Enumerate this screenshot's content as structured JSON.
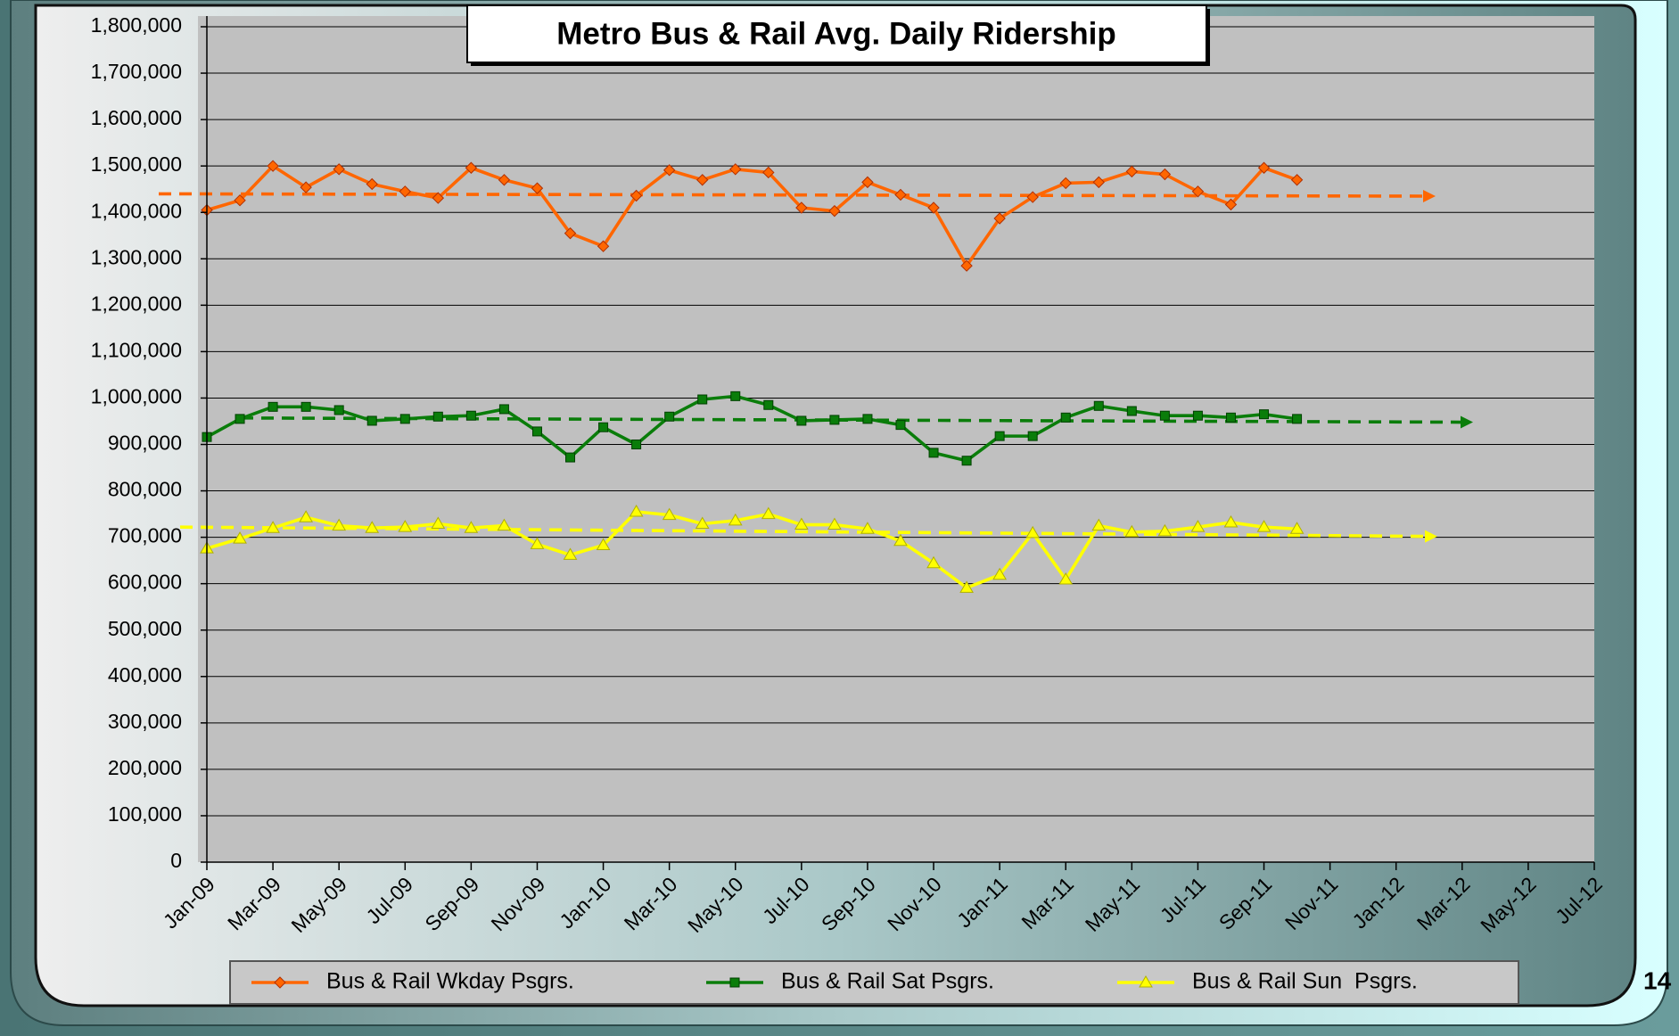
{
  "chart_data": {
    "type": "line",
    "title": "Metro Bus & Rail Avg. Daily Ridership",
    "page_number": "14",
    "categories": [
      "Jan-09",
      null,
      "Mar-09",
      null,
      "May-09",
      null,
      "Jul-09",
      null,
      "Sep-09",
      null,
      "Nov-09",
      null,
      "Jan-10",
      null,
      "Mar-10",
      null,
      "May-10",
      null,
      "Jul-10",
      null,
      "Sep-10",
      null,
      "Nov-10",
      null,
      "Jan-11",
      null,
      "Mar-11",
      null,
      "May-11",
      null,
      "Jul-11",
      null,
      "Sep-11",
      null,
      "Nov-11",
      null,
      "Jan-12",
      null,
      "Mar-12",
      null,
      "May-12",
      null,
      "Jul-12"
    ],
    "series": [
      {
        "name": "Bus & Rail Wkday Psgrs.",
        "color": "#ff6600",
        "marker": "diamond",
        "values": [
          1405000,
          1426000,
          1500000,
          1454000,
          1493000,
          1461000,
          1445000,
          1431000,
          1496000,
          1470000,
          1452000,
          1355000,
          1327000,
          1436000,
          1491000,
          1470000,
          1493000,
          1486000,
          1410000,
          1403000,
          1465000,
          1438000,
          1410000,
          1285000,
          1387000,
          1433000,
          1463000,
          1465000,
          1488000,
          1482000,
          1445000,
          1417000,
          1496000,
          1470000,
          null,
          null,
          null,
          null,
          null,
          null,
          null,
          null,
          null
        ]
      },
      {
        "name": "Bus & Rail Sat Psgrs.",
        "color": "#0a7d0a",
        "marker": "square",
        "values": [
          916000,
          955000,
          981000,
          981000,
          974000,
          951000,
          955000,
          960000,
          962000,
          976000,
          928000,
          872000,
          937000,
          900000,
          960000,
          997000,
          1004000,
          985000,
          951000,
          953000,
          955000,
          942000,
          882000,
          865000,
          918000,
          918000,
          958000,
          983000,
          972000,
          962000,
          962000,
          958000,
          965000,
          955000,
          null,
          null,
          null,
          null,
          null,
          null,
          null,
          null,
          null
        ]
      },
      {
        "name": "Bus & Rail Sun  Psgrs.",
        "color": "#ffff00",
        "marker": "triangle",
        "values": [
          676000,
          697000,
          720000,
          743000,
          725000,
          720000,
          722000,
          729000,
          720000,
          725000,
          685000,
          662000,
          683000,
          755000,
          748000,
          729000,
          736000,
          750000,
          727000,
          727000,
          718000,
          692000,
          644000,
          591000,
          619000,
          709000,
          609000,
          725000,
          711000,
          713000,
          722000,
          732000,
          722000,
          718000,
          null,
          null,
          null,
          null,
          null,
          null,
          null,
          null,
          null
        ]
      }
    ],
    "trendlines": [
      {
        "color": "#ff6600",
        "from": 1440000,
        "to": 1435000
      },
      {
        "color": "#0a7d0a",
        "from": 957000,
        "to": 948000
      },
      {
        "color": "#ffff00",
        "from": 722000,
        "to": 702000
      }
    ],
    "ylim": [
      0,
      1800000
    ],
    "yticks": [
      0,
      {
        "value": 100000,
        "label": "100,000"
      },
      {
        "value": 200000,
        "label": "200,000"
      },
      {
        "value": 300000,
        "label": "300,000"
      },
      {
        "value": 400000,
        "label": "400,000"
      },
      {
        "value": 500000,
        "label": "500,000"
      },
      {
        "value": 600000,
        "label": "600,000"
      },
      {
        "value": 700000,
        "label": "700,000"
      },
      {
        "value": 800000,
        "label": "800,000"
      },
      {
        "value": 900000,
        "label": "900,000"
      },
      {
        "value": 1000000,
        "label": "1,000,000"
      },
      {
        "value": 1100000,
        "label": "1,100,000"
      },
      {
        "value": 1200000,
        "label": "1,200,000"
      },
      {
        "value": 1300000,
        "label": "1,300,000"
      },
      {
        "value": 1400000,
        "label": "1,400,000"
      },
      {
        "value": 1500000,
        "label": "1,500,000"
      },
      {
        "value": 1600000,
        "label": "1,600,000"
      },
      {
        "value": 1700000,
        "label": "1,700,000"
      },
      {
        "value": 1800000,
        "label": "1,800,000"
      }
    ],
    "grid": true,
    "legend": "bottom"
  }
}
